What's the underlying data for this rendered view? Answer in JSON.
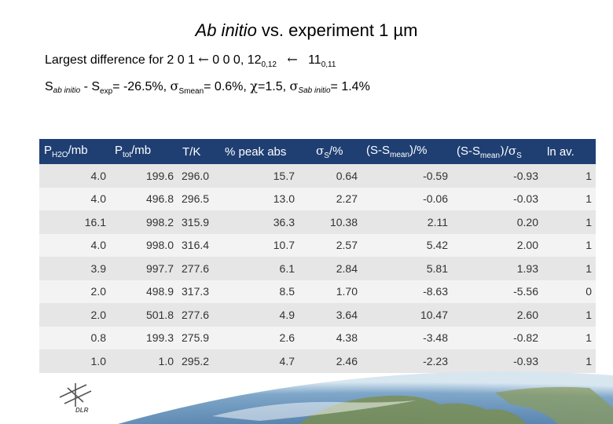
{
  "title": {
    "prefix": "Ab initio",
    "rest": " vs. experiment 1 µm"
  },
  "subtitle": {
    "text1": "Largest difference for 2 0 1 ",
    "arrow1": "←",
    "text2": " 0 0 0, 12",
    "sub1": "0,12",
    "arrow2": "←",
    "text3": " 11",
    "sub2": "0,11"
  },
  "stats": {
    "s1": "S",
    "s1_sub": "ab initio",
    "minus": " - S",
    "s2_sub": "exp",
    "val1": "= -26.5%, ",
    "sigma1": "σ",
    "sigma1_sub": "Smean",
    "val2": "= 0.6%, ",
    "chi": "χ",
    "val3": "=1.5, ",
    "sigma2": "σ",
    "sigma2_sub": "Sab initio",
    "val4": "= 1.4%"
  },
  "table": {
    "headers": {
      "p_h2o": "P",
      "p_h2o_sub": "H2O",
      "p_h2o_unit": "/mb",
      "p_tot": "P",
      "p_tot_sub": "tot",
      "p_tot_unit": "/mb",
      "t": "T/K",
      "peak": "% peak abs",
      "sigma": "σ",
      "sigma_sub": "S",
      "sigma_unit": "/%",
      "diff": "(S-S",
      "diff_sub": "mean",
      "diff_unit": ")/%",
      "norm": "(S-S",
      "norm_sub": "mean",
      "norm_mid": ")/σ",
      "norm_sub2": "S",
      "ln": "ln av."
    },
    "rows": [
      [
        "4.0",
        "199.6",
        "296.0",
        "15.7",
        "0.64",
        "-0.59",
        "-0.93",
        "1"
      ],
      [
        "4.0",
        "496.8",
        "296.5",
        "13.0",
        "2.27",
        "-0.06",
        "-0.03",
        "1"
      ],
      [
        "16.1",
        "998.2",
        "315.9",
        "36.3",
        "10.38",
        "2.11",
        "0.20",
        "1"
      ],
      [
        "4.0",
        "998.0",
        "316.4",
        "10.7",
        "2.57",
        "5.42",
        "2.00",
        "1"
      ],
      [
        "3.9",
        "997.7",
        "277.6",
        "6.1",
        "2.84",
        "5.81",
        "1.93",
        "1"
      ],
      [
        "2.0",
        "498.9",
        "317.3",
        "8.5",
        "1.70",
        "-8.63",
        "-5.56",
        "0"
      ],
      [
        "2.0",
        "501.8",
        "277.6",
        "4.9",
        "3.64",
        "10.47",
        "2.60",
        "1"
      ],
      [
        "0.8",
        "199.3",
        "275.9",
        "2.6",
        "4.38",
        "-3.48",
        "-0.82",
        "1"
      ],
      [
        "1.0",
        "1.0",
        "295.2",
        "4.7",
        "2.46",
        "-2.23",
        "-0.93",
        "1"
      ]
    ]
  },
  "logo": {
    "text": "DLR"
  },
  "colors": {
    "header_bg": "#1f3f73",
    "row_odd": "#e6e6e6",
    "row_even": "#f3f3f3"
  }
}
